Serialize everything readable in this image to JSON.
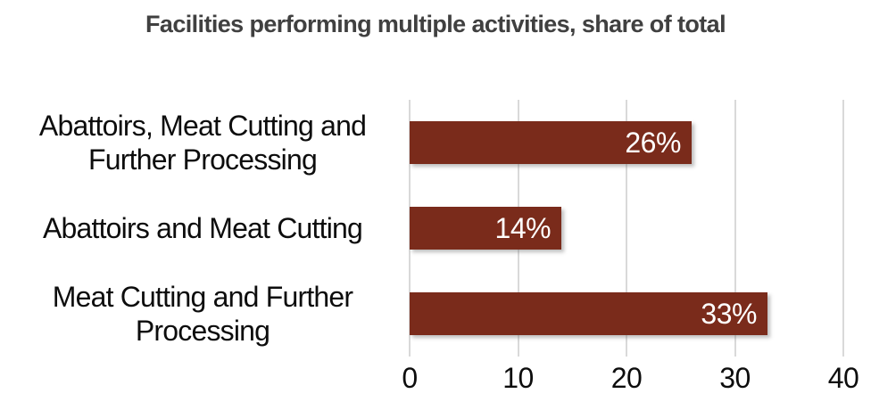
{
  "title": "Facilities performing multiple activities, share of total",
  "chart_data": {
    "type": "bar",
    "orientation": "horizontal",
    "title": "Facilities performing multiple activities, share of total",
    "categories": [
      "Abattoirs, Meat Cutting and Further Processing",
      "Abattoirs and Meat Cutting",
      "Meat Cutting and Further Processing"
    ],
    "values": [
      26,
      14,
      33
    ],
    "data_labels": [
      "26%",
      "14%",
      "33%"
    ],
    "xlabel": "",
    "ylabel": "",
    "xlim": [
      0,
      40
    ],
    "x_ticks": [
      "0",
      "10",
      "20",
      "30",
      "40"
    ],
    "x_tick_values": [
      0,
      10,
      20,
      30,
      40
    ],
    "grid": "vertical",
    "legend": "none",
    "colors": {
      "bar": "#7a2b1b",
      "data_label": "#ffffff",
      "title": "#404040",
      "axis_text": "#0d0d0d",
      "gridline": "#d9d9d9",
      "background": "#ffffff"
    }
  }
}
